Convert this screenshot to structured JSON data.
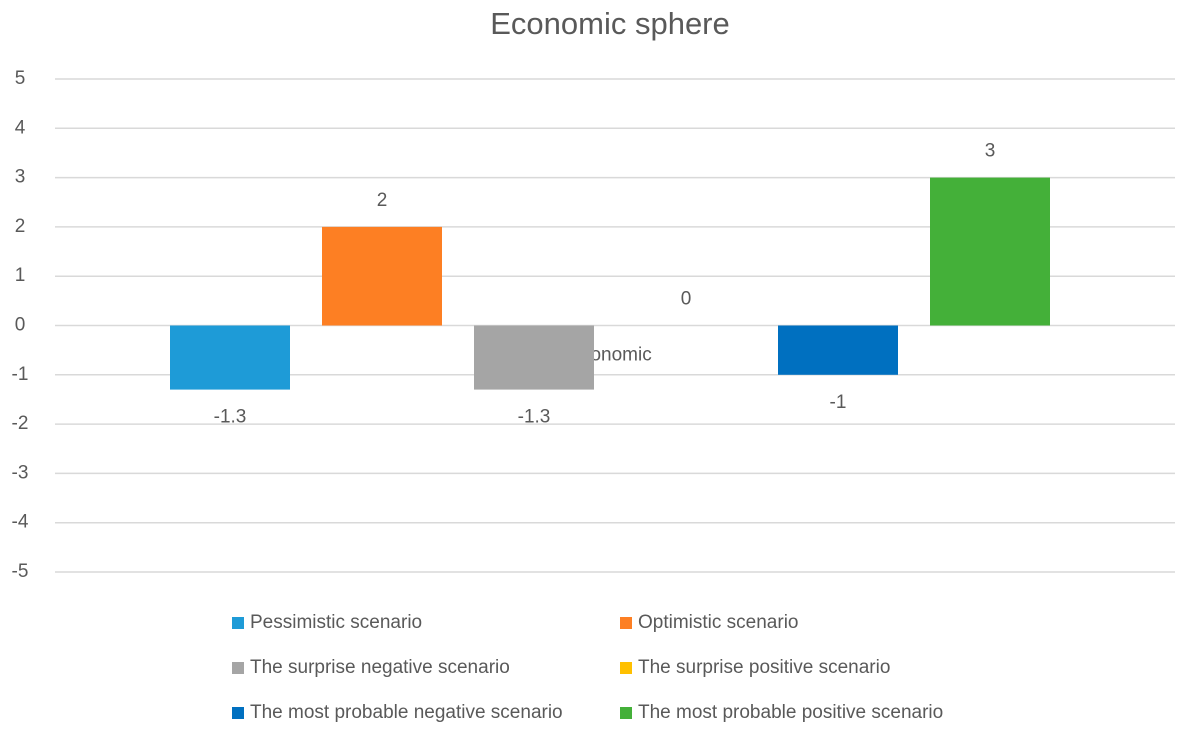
{
  "chart_data": {
    "type": "bar",
    "title": "Economic sphere",
    "categories": [
      "Economic"
    ],
    "series": [
      {
        "name": "Pessimistic scenario",
        "color": "#1e9bd7",
        "values": [
          -1.3
        ]
      },
      {
        "name": "Optimistic scenario",
        "color": "#fd7f23",
        "values": [
          2
        ]
      },
      {
        "name": "The surprise negative scenario",
        "color": "#a5a5a5",
        "values": [
          -1.3
        ]
      },
      {
        "name": "The surprise positive scenario",
        "color": "#ffc000",
        "values": [
          0
        ]
      },
      {
        "name": "The most probable negative scenario",
        "color": "#0070c0",
        "values": [
          -1
        ]
      },
      {
        "name": "The most probable positive scenario",
        "color": "#44b039",
        "values": [
          3
        ]
      }
    ],
    "ylim": [
      -5,
      5
    ],
    "yticks": [
      -5,
      -4,
      -3,
      -2,
      -1,
      0,
      1,
      2,
      3,
      4,
      5
    ],
    "grid": true,
    "legend": "bottom"
  }
}
